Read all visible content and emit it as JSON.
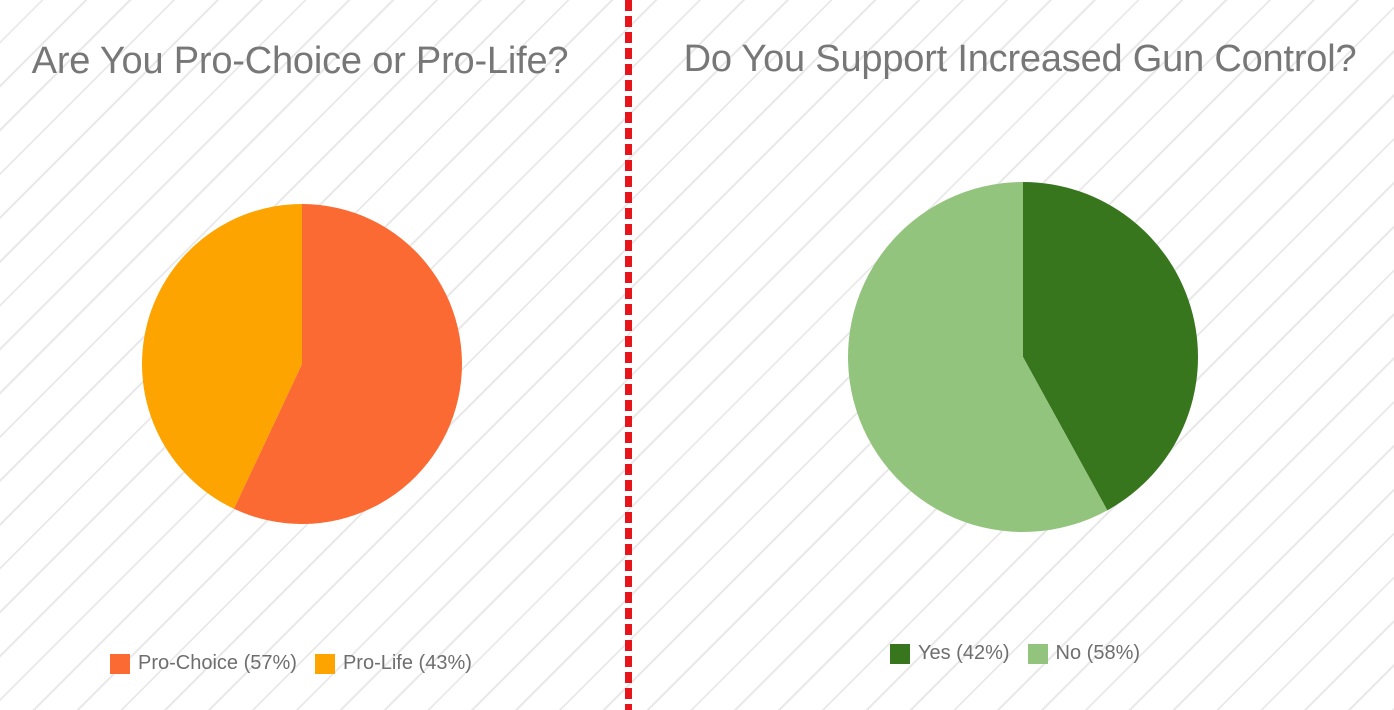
{
  "chart_data": [
    {
      "type": "pie",
      "title": "Are You Pro-Choice or Pro-Life?",
      "slices": [
        {
          "label": "Pro-Choice (57%)",
          "value": 57,
          "color": "#fb6a32"
        },
        {
          "label": "Pro-Life (43%)",
          "value": 43,
          "color": "#fea400"
        }
      ],
      "legend_position": "bottom"
    },
    {
      "type": "pie",
      "title": "Do You Support Increased Gun Control?",
      "slices": [
        {
          "label": "Yes (42%)",
          "value": 42,
          "color": "#38761d"
        },
        {
          "label": "No (58%)",
          "value": 58,
          "color": "#93c47d"
        }
      ],
      "legend_position": "bottom"
    }
  ],
  "divider": {
    "color": "#e8141c",
    "style": "dotted"
  }
}
